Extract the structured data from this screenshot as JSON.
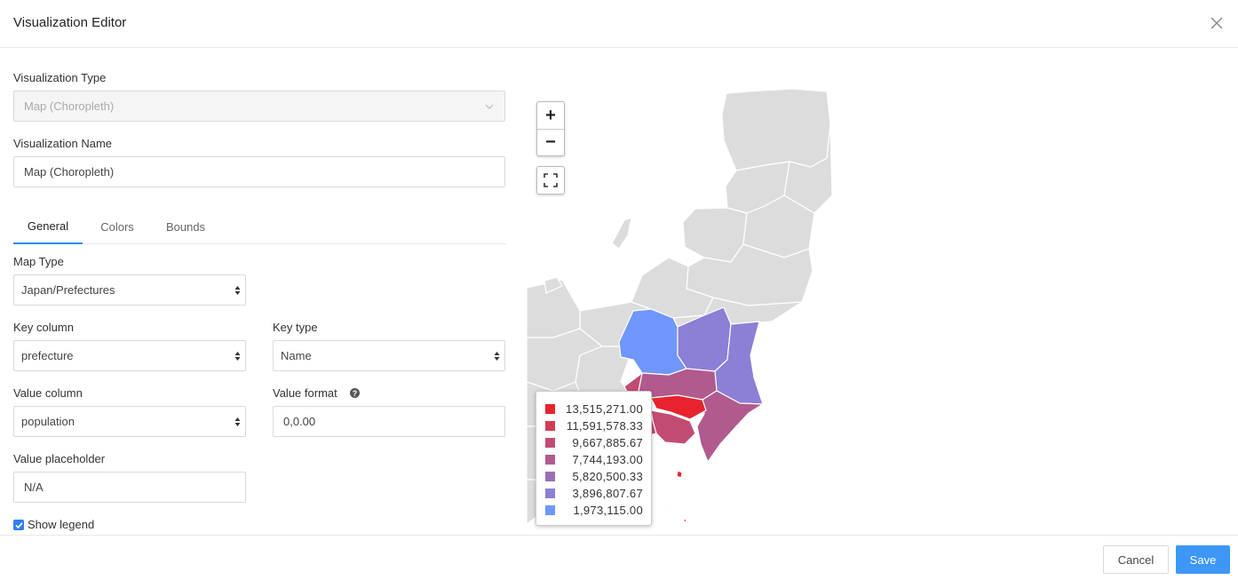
{
  "header": {
    "title": "Visualization Editor"
  },
  "form": {
    "vis_type_label": "Visualization Type",
    "vis_type_value": "Map (Choropleth)",
    "vis_name_label": "Visualization Name",
    "vis_name_value": "Map (Choropleth)",
    "tabs": [
      {
        "label": "General",
        "active": true
      },
      {
        "label": "Colors",
        "active": false
      },
      {
        "label": "Bounds",
        "active": false
      }
    ],
    "map_type_label": "Map Type",
    "map_type_value": "Japan/Prefectures",
    "key_column_label": "Key column",
    "key_column_value": "prefecture",
    "key_type_label": "Key type",
    "key_type_value": "Name",
    "value_column_label": "Value column",
    "value_column_value": "population",
    "value_format_label": "Value format",
    "value_format_value": "0,0.00",
    "value_placeholder_label": "Value placeholder",
    "value_placeholder_value": "N/A",
    "show_legend_label": "Show legend",
    "show_legend_checked": true
  },
  "map": {
    "zoom_in": "+",
    "zoom_out": "−",
    "legend": [
      {
        "value": "13,515,271.00",
        "color": "#e8232d"
      },
      {
        "value": "11,591,578.33",
        "color": "#d53a55"
      },
      {
        "value": "9,667,885.67",
        "color": "#c24b74"
      },
      {
        "value": "7,744,193.00",
        "color": "#b15a8e"
      },
      {
        "value": "5,820,500.33",
        "color": "#9c6fb5"
      },
      {
        "value": "3,896,807.67",
        "color": "#8b7fd6"
      },
      {
        "value": "1,973,115.00",
        "color": "#6f96fb"
      }
    ]
  },
  "footer": {
    "cancel_label": "Cancel",
    "save_label": "Save"
  }
}
